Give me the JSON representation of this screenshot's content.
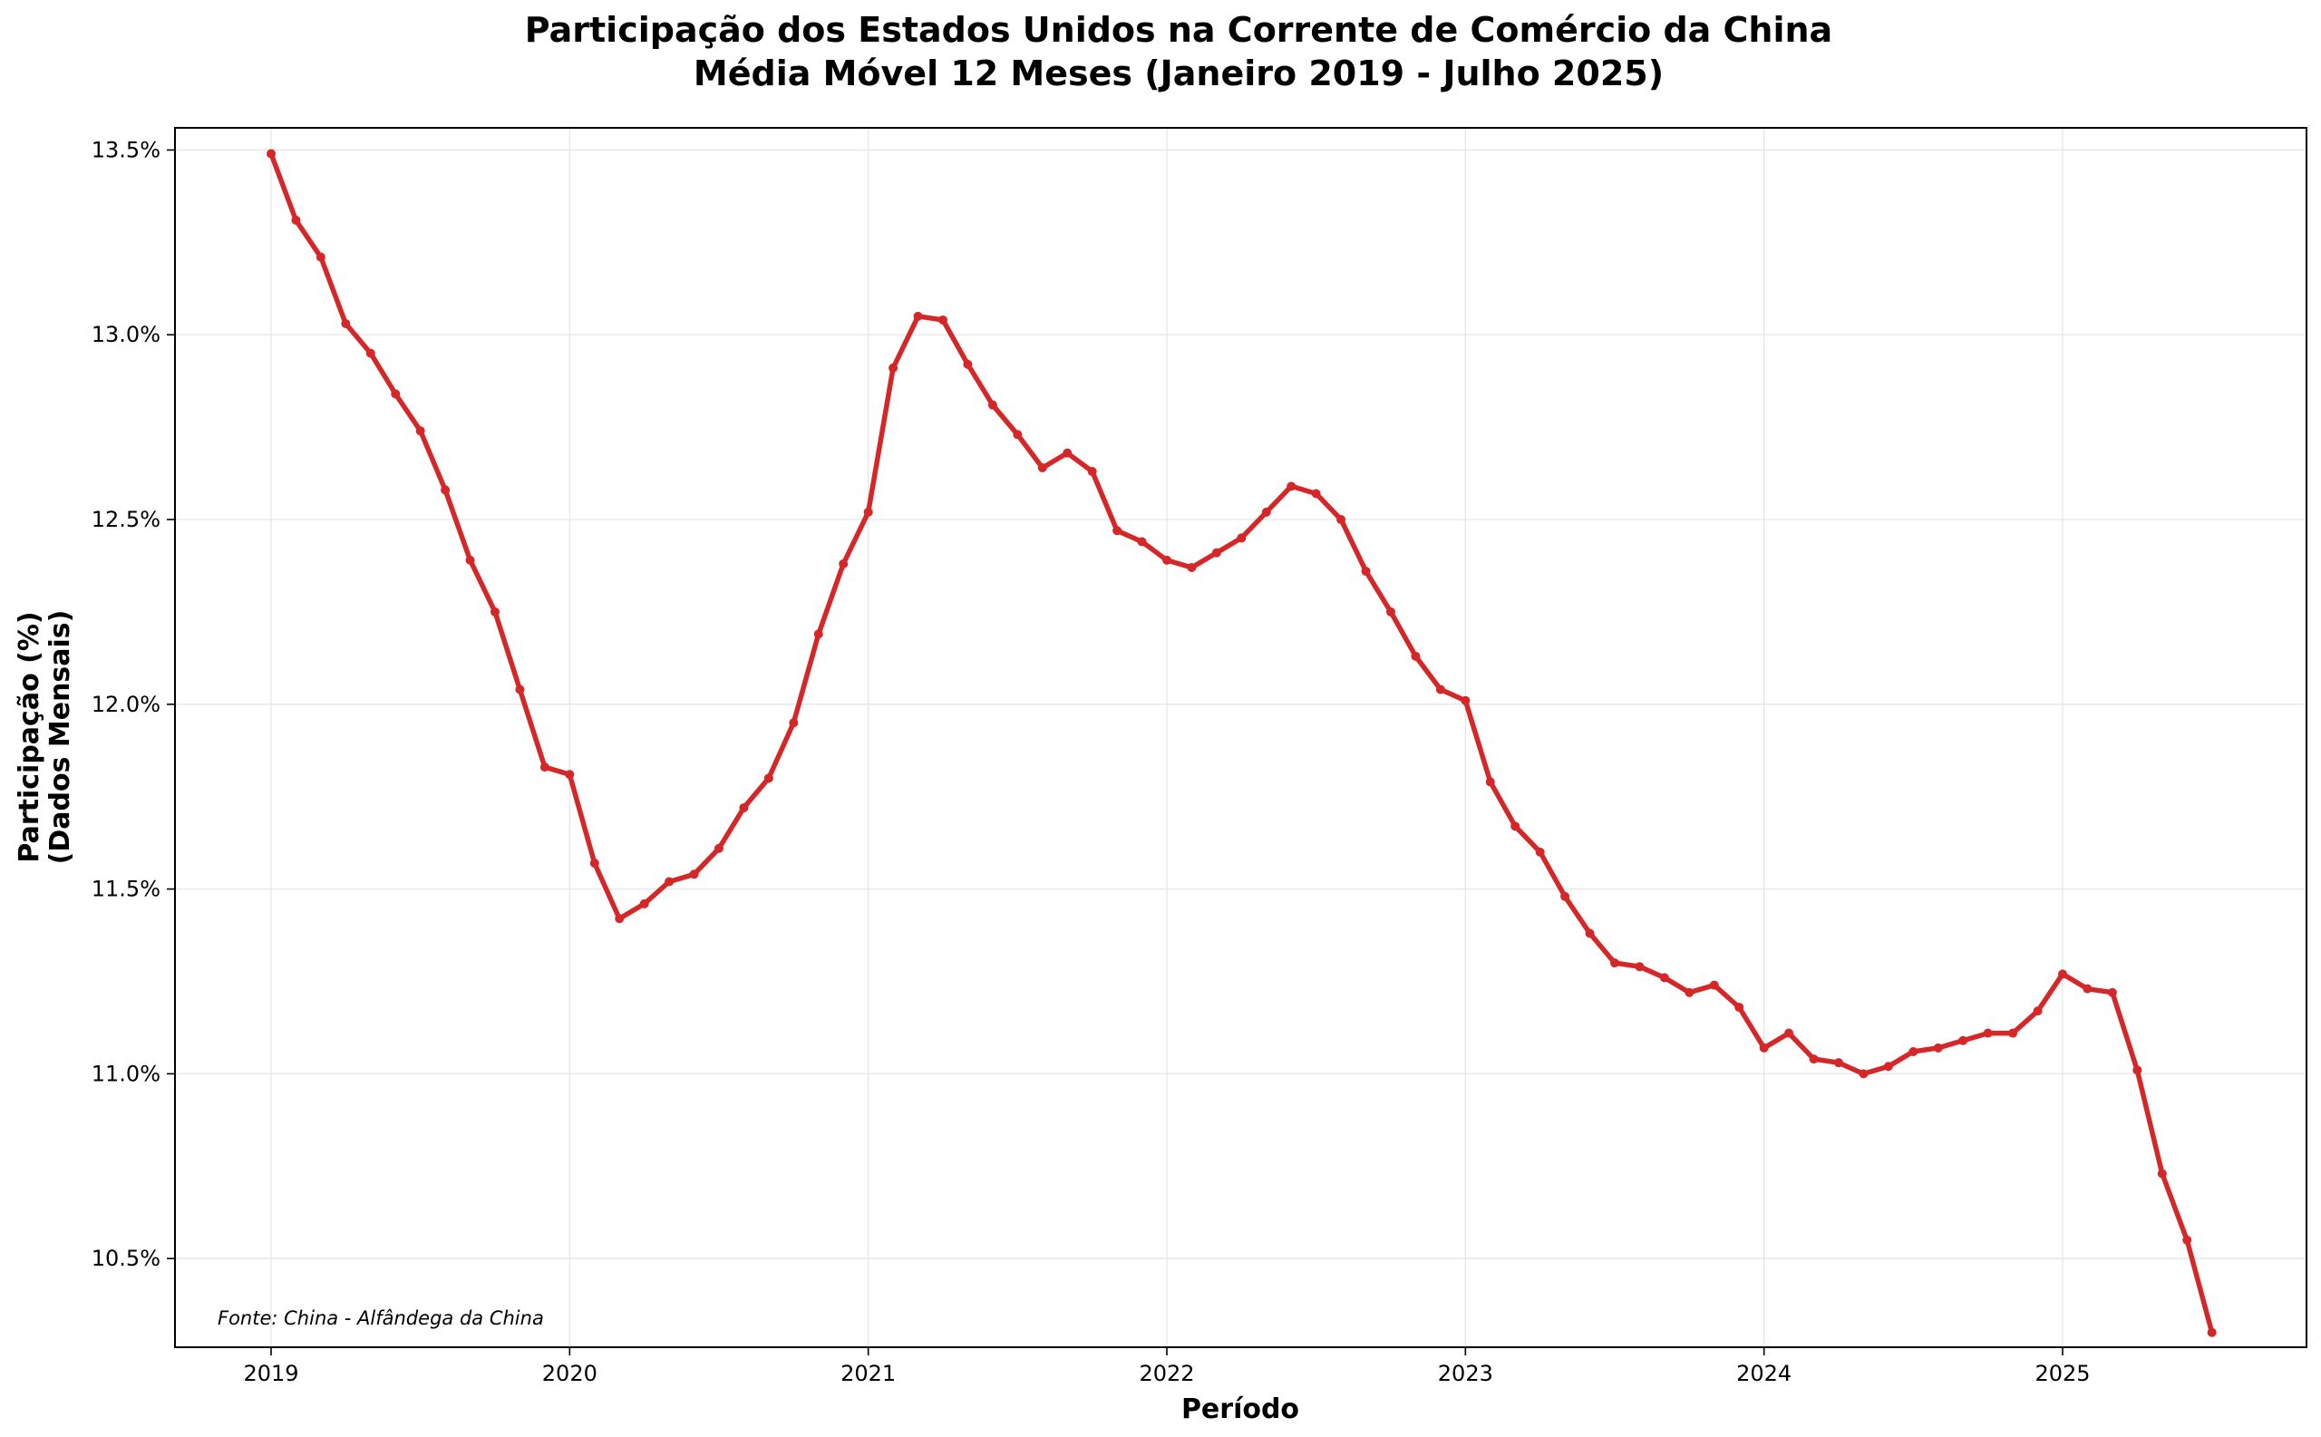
{
  "chart_data": {
    "type": "line",
    "title_line1": "Participação dos Estados Unidos na Corrente de Comércio da China",
    "title_line2": "Média Móvel 12 Meses (Janeiro 2019 - Julho 2025)",
    "xlabel": "Período",
    "ylabel_line1": "Participação (%)",
    "ylabel_line2": "(Dados Mensais)",
    "source_note": "Fonte: China - Alfândega da China",
    "x_start": "2019-01",
    "x_end": "2025-07",
    "x_ticks": [
      "2019",
      "2020",
      "2021",
      "2022",
      "2023",
      "2024",
      "2025"
    ],
    "y_ticks": [
      10.5,
      11.0,
      11.5,
      12.0,
      12.5,
      13.0,
      13.5
    ],
    "y_tick_labels": [
      "10.5%",
      "11.0%",
      "11.5%",
      "12.0%",
      "12.5%",
      "13.0%",
      "13.5%"
    ],
    "ylim": [
      10.26,
      13.56
    ],
    "grid": true,
    "line_color": "#d62728",
    "series": [
      {
        "x": [
          "2019-01",
          "2019-02",
          "2019-03",
          "2019-04",
          "2019-05",
          "2019-06",
          "2019-07",
          "2019-08",
          "2019-09",
          "2019-10",
          "2019-11",
          "2019-12",
          "2020-01",
          "2020-02",
          "2020-03",
          "2020-04",
          "2020-05",
          "2020-06",
          "2020-07",
          "2020-08",
          "2020-09",
          "2020-10",
          "2020-11",
          "2020-12",
          "2021-01",
          "2021-02",
          "2021-03",
          "2021-04",
          "2021-05",
          "2021-06",
          "2021-07",
          "2021-08",
          "2021-09",
          "2021-10",
          "2021-11",
          "2021-12",
          "2022-01",
          "2022-02",
          "2022-03",
          "2022-04",
          "2022-05",
          "2022-06",
          "2022-07",
          "2022-08",
          "2022-09",
          "2022-10",
          "2022-11",
          "2022-12",
          "2023-01",
          "2023-02",
          "2023-03",
          "2023-04",
          "2023-05",
          "2023-06",
          "2023-07",
          "2023-08",
          "2023-09",
          "2023-10",
          "2023-11",
          "2023-12",
          "2024-01",
          "2024-02",
          "2024-03",
          "2024-04",
          "2024-05",
          "2024-06",
          "2024-07",
          "2024-08",
          "2024-09",
          "2024-10",
          "2024-11",
          "2024-12",
          "2025-01",
          "2025-02",
          "2025-03",
          "2025-04",
          "2025-05",
          "2025-06",
          "2025-07"
        ],
        "values": [
          13.49,
          13.31,
          13.21,
          13.03,
          12.95,
          12.84,
          12.74,
          12.58,
          12.39,
          12.25,
          12.04,
          11.83,
          11.81,
          11.57,
          11.42,
          11.46,
          11.52,
          11.54,
          11.61,
          11.72,
          11.8,
          11.95,
          12.19,
          12.38,
          12.52,
          12.91,
          13.05,
          13.04,
          12.92,
          12.81,
          12.73,
          12.64,
          12.68,
          12.63,
          12.47,
          12.44,
          12.39,
          12.37,
          12.41,
          12.45,
          12.52,
          12.59,
          12.57,
          12.5,
          12.36,
          12.25,
          12.13,
          12.04,
          12.01,
          11.79,
          11.67,
          11.6,
          11.48,
          11.38,
          11.3,
          11.29,
          11.26,
          11.22,
          11.24,
          11.18,
          11.07,
          11.11,
          11.04,
          11.03,
          11.0,
          11.02,
          11.06,
          11.07,
          11.09,
          11.11,
          11.11,
          11.17,
          11.27,
          11.23,
          11.22,
          11.01,
          10.73,
          10.55,
          10.3
        ]
      }
    ]
  }
}
